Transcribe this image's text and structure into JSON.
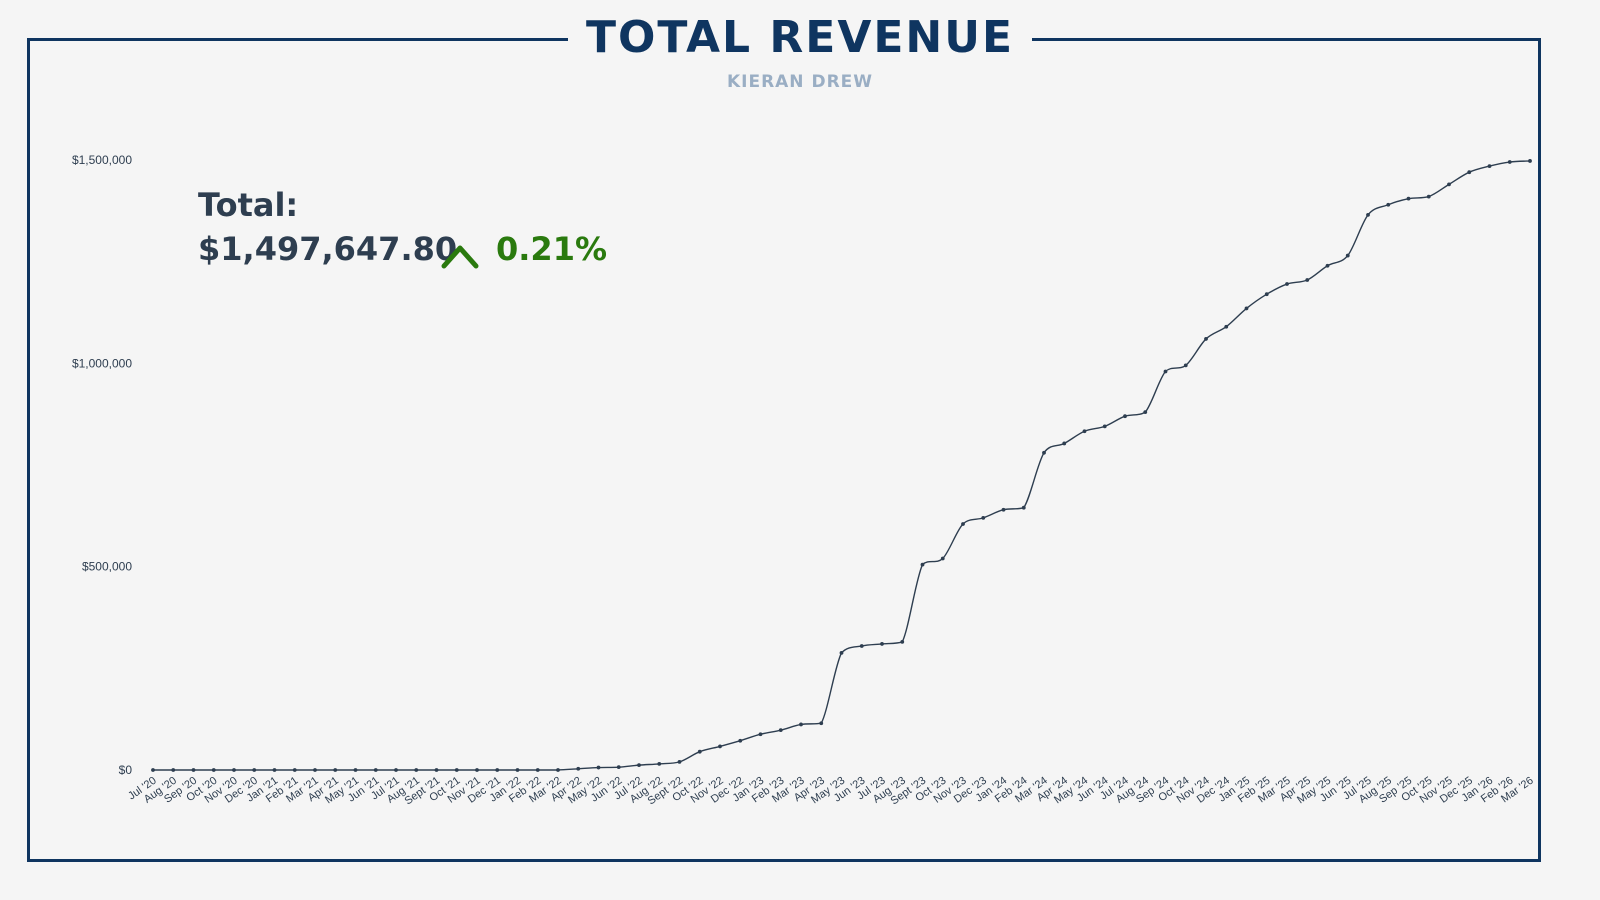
{
  "header": {
    "title": "TOTAL REVENUE",
    "subtitle": "KIERAN DREW"
  },
  "kpi": {
    "label": "Total:",
    "value": "$1,497,647.80",
    "change": "0.21%",
    "trend_icon": "chevron-up-icon",
    "trend_color": "#2a7a0e"
  },
  "colors": {
    "frame": "#0f3560",
    "title": "#0f3560",
    "subtitle": "#9aaec4",
    "line": "#2e3e50",
    "background": "#f5f5f5"
  },
  "chart_data": {
    "type": "line",
    "title": "TOTAL REVENUE",
    "subtitle": "KIERAN DREW",
    "xlabel": "",
    "ylabel": "",
    "ylim": [
      0,
      1500000
    ],
    "yticks": [
      0,
      500000,
      1000000,
      1500000
    ],
    "ytick_labels": [
      "$0",
      "$500,000",
      "$1,000,000",
      "$1,500,000"
    ],
    "grid": false,
    "categories": [
      "Jul '20",
      "Aug '20",
      "Sep '20",
      "Oct '20",
      "Nov '20",
      "Dec '20",
      "Jan '21",
      "Feb '21",
      "Mar '21",
      "Apr '21",
      "May '21",
      "Jun '21",
      "Jul '21",
      "Aug '21",
      "Sept '21",
      "Oct '21",
      "Nov '21",
      "Dec '21",
      "Jan '22",
      "Feb '22",
      "Mar '22",
      "Apr '22",
      "May '22",
      "Jun '22",
      "Jul '22",
      "Aug '22",
      "Sept '22",
      "Oct '22",
      "Nov '22",
      "Dec '22",
      "Jan '23",
      "Feb '23",
      "Mar '23",
      "Apr '23",
      "May '23",
      "Jun '23",
      "Jul '23",
      "Aug '23",
      "Sept '23",
      "Oct '23",
      "Nov '23",
      "Dec '23",
      "Jan '24",
      "Feb '24",
      "Mar '24",
      "Apr '24",
      "May '24",
      "Jun '24",
      "Jul '24",
      "Aug '24",
      "Sep '24",
      "Oct '24",
      "Nov '24",
      "Dec '24",
      "Jan '25",
      "Feb '25",
      "Mar '25",
      "Apr '25",
      "May '25",
      "Jun '25",
      "Jul '25",
      "Aug '25",
      "Sep '25",
      "Oct '25",
      "Nov '25",
      "Dec '25",
      "Jan '26",
      "Feb '26",
      "Mar '26"
    ],
    "series": [
      {
        "values": [
          0,
          0,
          0,
          0,
          0,
          0,
          0,
          0,
          0,
          0,
          0,
          0,
          0,
          0,
          0,
          0,
          0,
          0,
          0,
          0,
          0,
          3000,
          6000,
          7000,
          12000,
          15000,
          20000,
          45000,
          58000,
          72000,
          88000,
          98000,
          112000,
          115000,
          288000,
          305000,
          310000,
          315000,
          505000,
          520000,
          605000,
          620000,
          640000,
          645000,
          780000,
          803000,
          833000,
          845000,
          870000,
          880000,
          980000,
          995000,
          1060000,
          1090000,
          1135000,
          1170000,
          1195000,
          1205000,
          1240000,
          1265000,
          1365000,
          1390000,
          1405000,
          1410000,
          1440000,
          1470000,
          1485000,
          1495000,
          1497648
        ]
      }
    ]
  }
}
